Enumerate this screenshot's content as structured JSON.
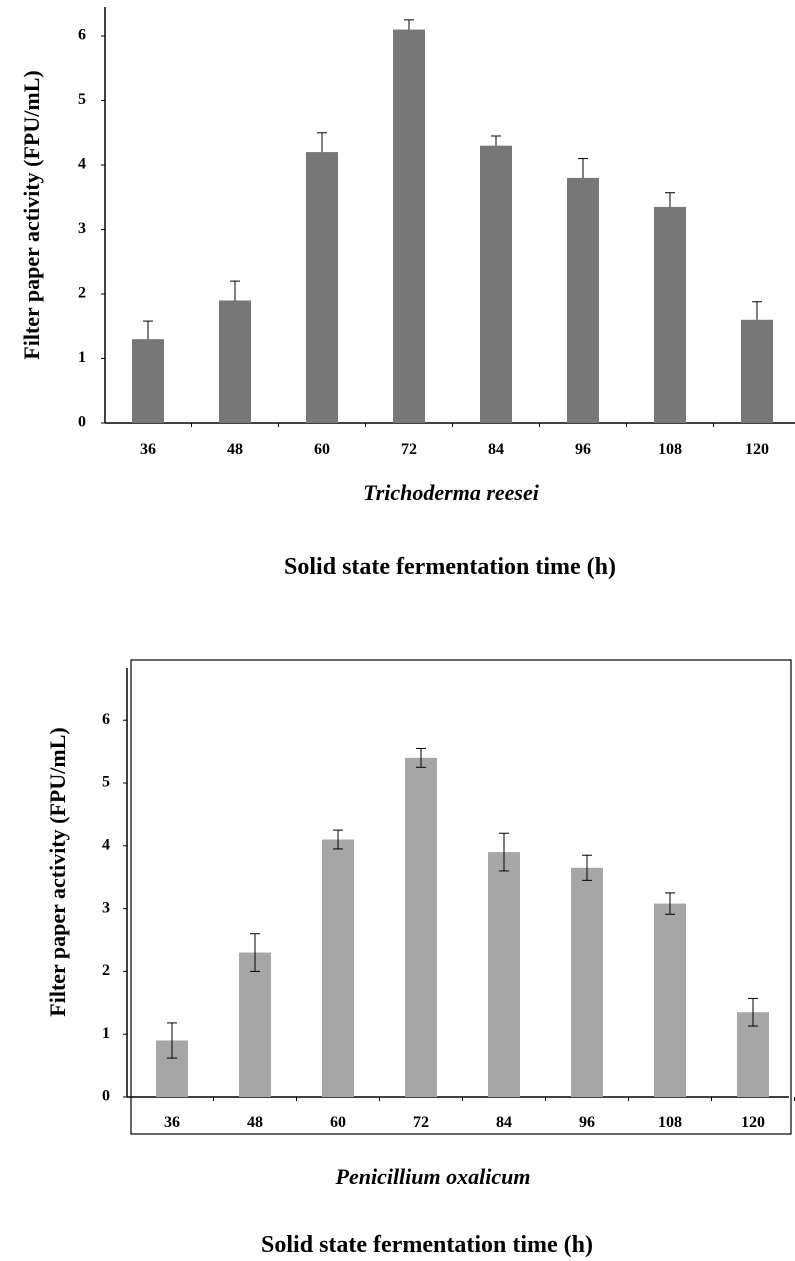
{
  "chart_data": [
    {
      "type": "bar",
      "subtitle": "Trichoderma reesei",
      "xlabel": "Solid state fermentation time (h)",
      "ylabel": "Filter paper activity (FPU/mL)",
      "ylim": [
        0,
        6.5
      ],
      "yticks": [
        "0",
        "1",
        "2",
        "3",
        "4",
        "5",
        "6"
      ],
      "categories": [
        "36",
        "48",
        "60",
        "72",
        "84",
        "96",
        "108",
        "120"
      ],
      "values": [
        1.3,
        1.9,
        4.2,
        6.1,
        4.3,
        3.8,
        3.35,
        1.6
      ],
      "errors": [
        0.28,
        0.3,
        0.3,
        0.15,
        0.15,
        0.3,
        0.22,
        0.28
      ],
      "bar_color": "#777777",
      "framed": false
    },
    {
      "type": "bar",
      "subtitle": "Penicillium oxalicum",
      "xlabel": "Solid state fermentation time (h)",
      "ylabel": "Filter paper activity (FPU/mL)",
      "ylim": [
        0,
        6.5
      ],
      "yticks": [
        "0",
        "1",
        "2",
        "3",
        "4",
        "5",
        "6"
      ],
      "categories": [
        "36",
        "48",
        "60",
        "72",
        "84",
        "96",
        "108",
        "120"
      ],
      "values": [
        0.9,
        2.3,
        4.1,
        5.4,
        3.9,
        3.65,
        3.08,
        1.35
      ],
      "errors": [
        0.28,
        0.3,
        0.15,
        0.15,
        0.3,
        0.2,
        0.17,
        0.22
      ],
      "bar_color": "#a6a6a6",
      "framed": true
    }
  ]
}
